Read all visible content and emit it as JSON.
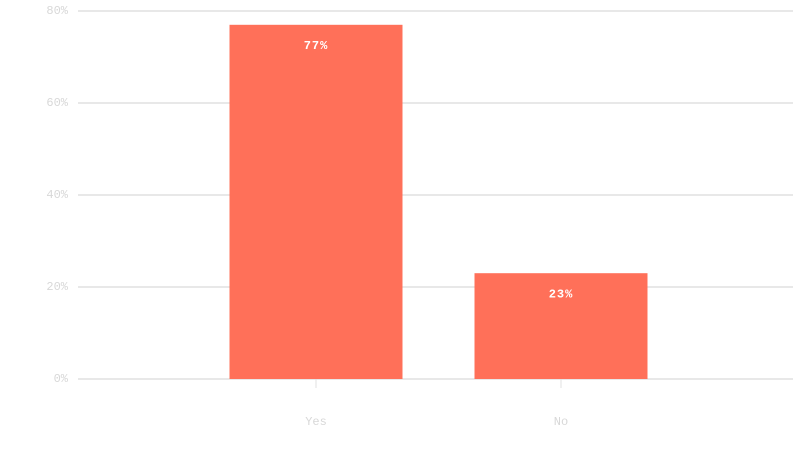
{
  "chart_data": {
    "type": "bar",
    "categories": [
      "Yes",
      "No"
    ],
    "values": [
      77,
      23
    ],
    "value_labels": [
      "77%",
      "23%"
    ],
    "color": "#ff7059",
    "ylim": [
      0,
      80
    ],
    "yticks": [
      {
        "value": 0,
        "label": "0%"
      },
      {
        "value": 20,
        "label": "20%"
      },
      {
        "value": 40,
        "label": "40%"
      },
      {
        "value": 60,
        "label": "60%"
      },
      {
        "value": 80,
        "label": "80%"
      }
    ],
    "grid": true
  }
}
